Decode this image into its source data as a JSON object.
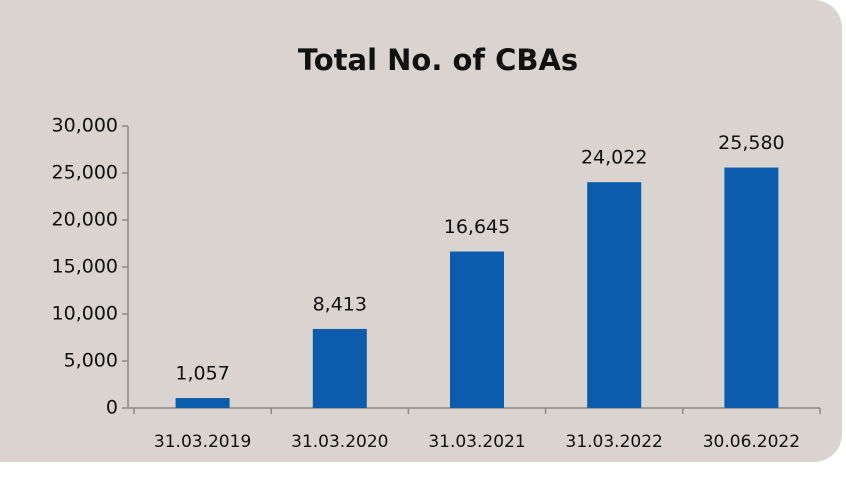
{
  "chart_data": {
    "type": "bar",
    "title": "Total No. of CBAs",
    "categories": [
      "31.03.2019",
      "31.03.2020",
      "31.03.2021",
      "31.03.2022",
      "30.06.2022"
    ],
    "values": [
      1057,
      8413,
      16645,
      24022,
      25580
    ],
    "value_labels": [
      "1,057",
      "8,413",
      "16,645",
      "24,022",
      "25,580"
    ],
    "color": "#0b5cad",
    "ylim": [
      0,
      30000
    ],
    "yticks": [
      0,
      {
        "value": 5000,
        "label": "5,000"
      },
      {
        "value": 10000,
        "label": "10,000"
      },
      {
        "value": 15000,
        "label": "15,000"
      },
      {
        "value": 20000,
        "label": "20,000"
      },
      {
        "value": 25000,
        "label": "25,000"
      },
      {
        "value": 30000,
        "label": "30,000"
      }
    ],
    "grid": false
  }
}
